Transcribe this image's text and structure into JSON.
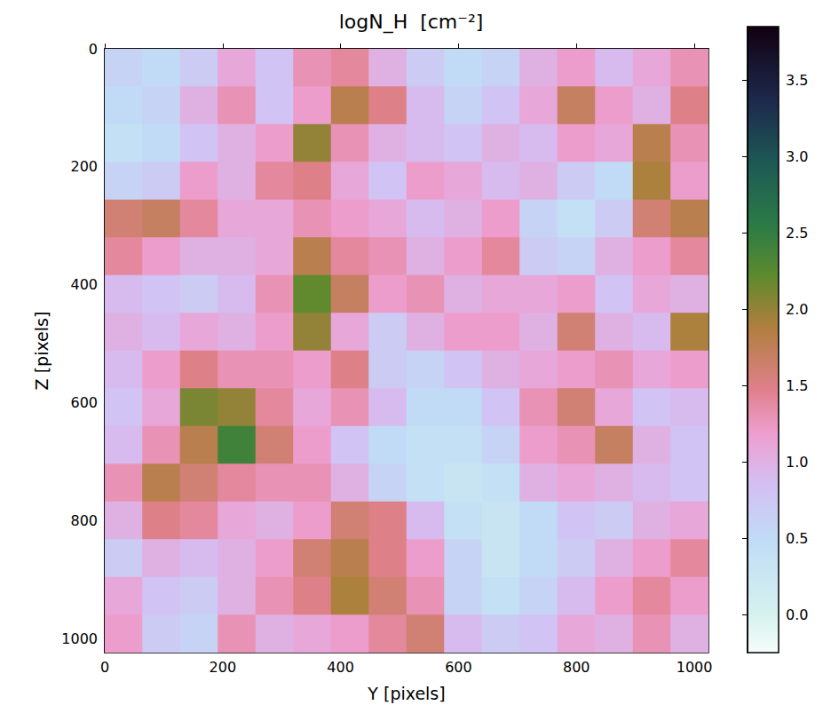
{
  "chart_data": {
    "type": "heatmap",
    "title": "logN_H  [cm⁻²]",
    "x_label": "Y [pixels]",
    "y_label": "Z [pixels]",
    "xlim": [
      0,
      1024
    ],
    "ylim": [
      0,
      1024
    ],
    "xticks": [
      0,
      200,
      400,
      600,
      800,
      1000
    ],
    "yticks": [
      0,
      200,
      400,
      600,
      800,
      1000
    ],
    "x_edges": [
      0,
      64,
      128,
      192,
      256,
      320,
      384,
      448,
      512,
      576,
      640,
      704,
      768,
      832,
      896,
      960,
      1024
    ],
    "y_edges": [
      0,
      64,
      128,
      192,
      256,
      320,
      384,
      448,
      512,
      576,
      640,
      704,
      768,
      832,
      896,
      960,
      1024
    ],
    "cells": [
      [
        0.6,
        0.5,
        0.7,
        1.1,
        0.8,
        1.3,
        1.4,
        1.0,
        0.7,
        0.5,
        0.6,
        1.0,
        1.2,
        0.9,
        1.1,
        1.3
      ],
      [
        0.5,
        0.6,
        1.0,
        1.3,
        0.8,
        1.2,
        1.8,
        1.5,
        0.9,
        0.6,
        0.8,
        1.1,
        1.7,
        1.2,
        1.0,
        1.5
      ],
      [
        0.4,
        0.5,
        0.8,
        1.0,
        1.2,
        2.0,
        1.3,
        1.0,
        0.9,
        0.8,
        1.0,
        0.9,
        1.2,
        1.1,
        1.8,
        1.3
      ],
      [
        0.6,
        0.7,
        1.2,
        1.0,
        1.4,
        1.5,
        1.1,
        0.8,
        1.2,
        1.1,
        0.9,
        1.0,
        0.7,
        0.5,
        1.9,
        1.2
      ],
      [
        1.6,
        1.7,
        1.4,
        1.1,
        1.1,
        1.3,
        1.2,
        1.1,
        0.9,
        1.0,
        1.2,
        0.6,
        0.4,
        0.7,
        1.6,
        1.8
      ],
      [
        1.4,
        1.2,
        1.0,
        1.0,
        1.1,
        1.8,
        1.4,
        1.3,
        1.0,
        1.2,
        1.4,
        0.7,
        0.6,
        1.0,
        1.2,
        1.4
      ],
      [
        0.9,
        0.8,
        0.7,
        0.9,
        1.3,
        2.2,
        1.7,
        1.2,
        1.3,
        1.0,
        1.1,
        1.1,
        1.2,
        0.8,
        1.1,
        1.0
      ],
      [
        1.0,
        0.9,
        1.1,
        1.0,
        1.2,
        2.0,
        1.1,
        0.7,
        1.0,
        1.2,
        1.2,
        1.0,
        1.6,
        1.0,
        0.9,
        1.9
      ],
      [
        0.9,
        1.2,
        1.5,
        1.3,
        1.3,
        1.2,
        1.5,
        0.7,
        0.6,
        0.8,
        1.0,
        1.1,
        1.2,
        1.3,
        1.1,
        1.2
      ],
      [
        0.8,
        1.1,
        2.1,
        2.0,
        1.4,
        1.1,
        1.3,
        0.9,
        0.5,
        0.5,
        0.8,
        1.3,
        1.6,
        1.1,
        0.8,
        0.9
      ],
      [
        0.9,
        1.3,
        1.8,
        2.4,
        1.6,
        1.2,
        0.8,
        0.5,
        0.4,
        0.4,
        0.6,
        1.2,
        1.3,
        1.7,
        1.0,
        0.8
      ],
      [
        1.3,
        1.8,
        1.6,
        1.4,
        1.3,
        1.3,
        1.0,
        0.6,
        0.4,
        0.3,
        0.4,
        1.0,
        1.1,
        1.0,
        0.9,
        0.8
      ],
      [
        1.0,
        1.5,
        1.4,
        1.1,
        1.0,
        1.2,
        1.6,
        1.5,
        0.9,
        0.4,
        0.3,
        0.5,
        0.8,
        0.7,
        1.0,
        1.1
      ],
      [
        0.7,
        1.0,
        0.9,
        1.0,
        1.2,
        1.6,
        1.8,
        1.5,
        1.2,
        0.6,
        0.3,
        0.5,
        0.7,
        1.0,
        1.2,
        1.4
      ],
      [
        1.1,
        0.8,
        0.7,
        1.0,
        1.3,
        1.5,
        1.9,
        1.6,
        1.3,
        0.6,
        0.4,
        0.6,
        0.9,
        1.2,
        1.4,
        1.2
      ],
      [
        1.2,
        0.7,
        0.6,
        1.3,
        1.0,
        1.1,
        1.2,
        1.4,
        1.6,
        0.9,
        0.7,
        0.8,
        1.1,
        1.0,
        1.3,
        1.0
      ]
    ],
    "colorbar": {
      "range": [
        -0.25,
        3.85
      ],
      "ticks": [
        {
          "value": 0,
          "label": "0.0"
        },
        {
          "value": 0.5,
          "label": "0.5"
        },
        {
          "value": 1,
          "label": "1.0"
        },
        {
          "value": 1.5,
          "label": "1.5"
        },
        {
          "value": 2,
          "label": "2.0"
        },
        {
          "value": 2.5,
          "label": "2.5"
        },
        {
          "value": 3,
          "label": "3.0"
        },
        {
          "value": 3.5,
          "label": "3.5"
        }
      ]
    }
  }
}
